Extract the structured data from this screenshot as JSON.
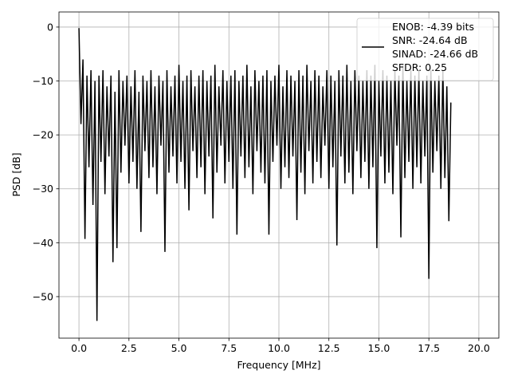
{
  "chart_data": {
    "type": "line",
    "title": "",
    "xlabel": "Frequency [MHz]",
    "ylabel": "PSD [dB]",
    "xlim": [
      -1.0,
      21.0
    ],
    "ylim": [
      -57.7,
      2.8
    ],
    "grid": true,
    "xticks": [
      0,
      2.5,
      5,
      7.5,
      10,
      12.5,
      15,
      17.5,
      20
    ],
    "xtick_labels": [
      "0.0",
      "2.5",
      "5.0",
      "7.5",
      "10.0",
      "12.5",
      "15.0",
      "17.5",
      "20.0"
    ],
    "yticks": [
      0,
      -10,
      -20,
      -30,
      -40,
      -50
    ],
    "ytick_labels": [
      "0",
      "−10",
      "−20",
      "−30",
      "−40",
      "−50"
    ],
    "legend": {
      "placement": "upper-right",
      "entries": [
        "ENOB: -4.39 bits",
        "SNR: -24.64 dB",
        "SINAD: -24.66 dB",
        "SFDR: 0.25"
      ]
    },
    "series": [
      {
        "name": "PSD",
        "color": "#000000",
        "x_start": 0.0,
        "x_step": 0.1,
        "values": [
          -0.2,
          -18,
          -6,
          -39.3,
          -9,
          -26,
          -8,
          -33,
          -10,
          -54.5,
          -9,
          -25,
          -8,
          -31,
          -11,
          -24,
          -9,
          -43.6,
          -12,
          -41,
          -8,
          -27,
          -10,
          -22,
          -9,
          -29,
          -11,
          -25,
          -8,
          -30,
          -12,
          -38,
          -9,
          -23,
          -10,
          -28,
          -8,
          -26,
          -11,
          -31,
          -9,
          -22,
          -10,
          -41.7,
          -8,
          -27,
          -11,
          -24,
          -9,
          -29,
          -7,
          -25,
          -10,
          -30,
          -9,
          -34,
          -8,
          -23,
          -11,
          -28,
          -9,
          -26,
          -8,
          -31,
          -10,
          -24,
          -9,
          -35.5,
          -7,
          -27,
          -11,
          -22,
          -8,
          -29,
          -10,
          -25,
          -9,
          -30,
          -8,
          -38.5,
          -10,
          -24,
          -9,
          -28,
          -7,
          -26,
          -11,
          -31,
          -8,
          -23,
          -10,
          -27,
          -9,
          -29,
          -8,
          -38.5,
          -10,
          -25,
          -9,
          -22,
          -7,
          -30,
          -11,
          -26,
          -8,
          -28,
          -9,
          -24,
          -10,
          -35.8,
          -8,
          -27,
          -9,
          -31,
          -7,
          -23,
          -10,
          -29,
          -8,
          -25,
          -9,
          -28,
          -11,
          -22,
          -8,
          -30,
          -9,
          -26,
          -10,
          -40.5,
          -8,
          -24,
          -9,
          -29,
          -7,
          -27,
          -10,
          -31,
          -8,
          -23,
          -9,
          -28,
          -10,
          -25,
          -8,
          -30,
          -9,
          -26,
          -7,
          -41,
          -10,
          -24,
          -8,
          -29,
          -9,
          -27,
          -10,
          -31,
          -8,
          -22,
          -9,
          -39,
          -7,
          -28,
          -10,
          -25,
          -8,
          -30,
          -9,
          -26,
          -8,
          -29,
          -10,
          -24,
          -9,
          -46.7,
          -8,
          -27,
          -10,
          -23,
          -9,
          -30,
          -8,
          -28,
          -11,
          -36,
          -14
        ]
      }
    ]
  }
}
